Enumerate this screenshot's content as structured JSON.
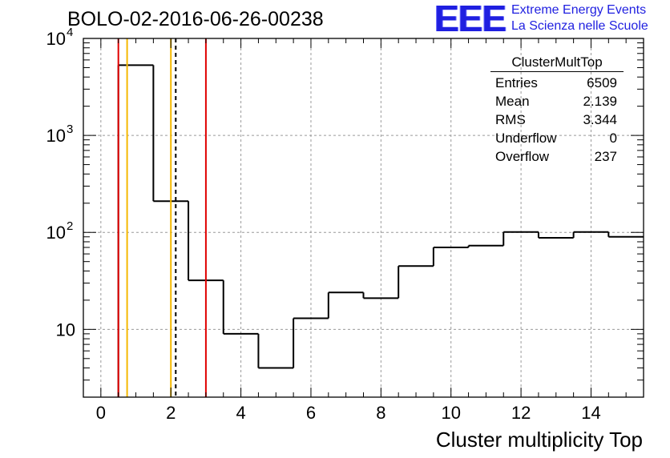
{
  "header": {
    "run_title": "BOLO-02-2016-06-26-00238"
  },
  "logo": {
    "mark": "EEE",
    "line1": "Extreme Energy Events",
    "line2": "La Scienza nelle Scuole",
    "color": "#1f1fe0"
  },
  "stats": {
    "title": "ClusterMultTop",
    "rows": [
      {
        "label": "Entries",
        "value": "6509"
      },
      {
        "label": "Mean",
        "value": "2.139"
      },
      {
        "label": "RMS",
        "value": "3.344"
      },
      {
        "label": "Underflow",
        "value": "0"
      },
      {
        "label": "Overflow",
        "value": "237"
      }
    ]
  },
  "chart_data": {
    "type": "histogram",
    "title": "",
    "xlabel": "Cluster multiplicity Top",
    "ylabel": "",
    "log_y": true,
    "grid": true,
    "xlim": [
      -0.5,
      15.5
    ],
    "ylim": [
      2,
      10000
    ],
    "x_ticks": [
      0,
      2,
      4,
      6,
      8,
      10,
      12,
      14
    ],
    "y_ticks": [
      {
        "value": 10,
        "base": "10",
        "exp": ""
      },
      {
        "value": 100,
        "base": "10",
        "exp": "2"
      },
      {
        "value": 1000,
        "base": "10",
        "exp": "3"
      },
      {
        "value": 10000,
        "base": "10",
        "exp": "4"
      }
    ],
    "bin_edges": [
      0.5,
      1.5,
      2.5,
      3.5,
      4.5,
      5.5,
      6.5,
      7.5,
      8.5,
      9.5,
      10.5,
      11.5,
      12.5,
      13.5,
      14.5,
      15.5
    ],
    "counts": [
      5300,
      210,
      32,
      9,
      4,
      13,
      24,
      21,
      45,
      70,
      73,
      101,
      88,
      101,
      90
    ],
    "hist_color": "#000000",
    "vertical_lines": [
      {
        "x": 0.5,
        "color": "#e00000",
        "style": "solid"
      },
      {
        "x": 0.75,
        "color": "#f5b800",
        "style": "solid"
      },
      {
        "x": 2.0,
        "color": "#f5b800",
        "style": "solid"
      },
      {
        "x": 2.139,
        "color": "#000000",
        "style": "dashed"
      },
      {
        "x": 3.0,
        "color": "#e00000",
        "style": "solid"
      }
    ]
  }
}
